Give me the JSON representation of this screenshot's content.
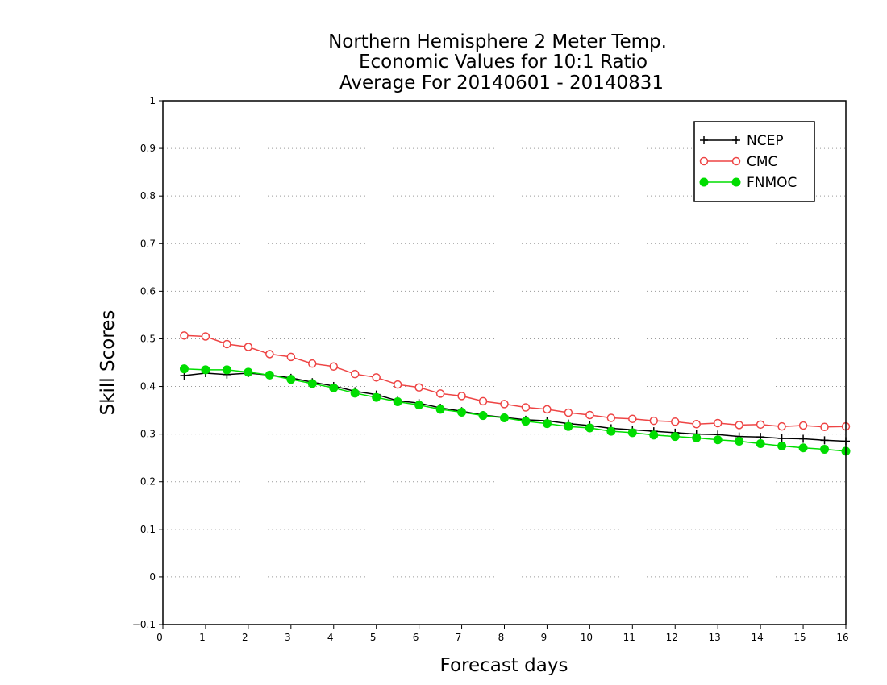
{
  "chart_data": {
    "type": "line",
    "title_lines": [
      "Northern Hemisphere 2 Meter Temp.",
      "Economic Values for 10:1 Ratio",
      "Average For 20140601 - 20140831"
    ],
    "xlabel": "Forecast days",
    "ylabel": "Skill Scores",
    "xlim": [
      0,
      16
    ],
    "ylim": [
      -0.1,
      1
    ],
    "x_ticks": [
      "0",
      "1",
      "2",
      "3",
      "4",
      "5",
      "6",
      "7",
      "8",
      "9",
      "10",
      "11",
      "12",
      "13",
      "14",
      "15",
      "16"
    ],
    "y_ticks": [
      "−0.1",
      "0",
      "0.1",
      "0.2",
      "0.3",
      "0.4",
      "0.5",
      "0.6",
      "0.7",
      "0.8",
      "0.9",
      "1"
    ],
    "grid": "horizontal dotted",
    "legend_position": "top-right",
    "x": [
      0.5,
      1,
      1.5,
      2,
      2.5,
      3,
      3.5,
      4,
      4.5,
      5,
      5.5,
      6,
      6.5,
      7,
      7.5,
      8,
      8.5,
      9,
      9.5,
      10,
      10.5,
      11,
      11.5,
      12,
      12.5,
      13,
      13.5,
      14,
      14.5,
      15,
      15.5,
      16
    ],
    "series": [
      {
        "name": "NCEP",
        "color": "#000000",
        "marker": "plus",
        "values": [
          0.423,
          0.428,
          0.425,
          0.428,
          0.424,
          0.418,
          0.409,
          0.401,
          0.39,
          0.383,
          0.37,
          0.365,
          0.355,
          0.348,
          0.34,
          0.335,
          0.33,
          0.328,
          0.322,
          0.318,
          0.312,
          0.309,
          0.306,
          0.303,
          0.3,
          0.299,
          0.295,
          0.294,
          0.291,
          0.29,
          0.287,
          0.285
        ]
      },
      {
        "name": "CMC",
        "color": "#ee4444",
        "marker": "open-circle",
        "values": [
          0.507,
          0.505,
          0.489,
          0.483,
          0.468,
          0.462,
          0.448,
          0.442,
          0.426,
          0.419,
          0.404,
          0.398,
          0.385,
          0.38,
          0.369,
          0.363,
          0.356,
          0.352,
          0.345,
          0.34,
          0.334,
          0.332,
          0.328,
          0.326,
          0.321,
          0.323,
          0.319,
          0.32,
          0.316,
          0.318,
          0.315,
          0.316
        ]
      },
      {
        "name": "FNMOC",
        "color": "#00dd00",
        "marker": "filled-circle",
        "values": [
          0.437,
          0.435,
          0.435,
          0.43,
          0.424,
          0.415,
          0.406,
          0.397,
          0.386,
          0.377,
          0.368,
          0.361,
          0.352,
          0.346,
          0.339,
          0.334,
          0.327,
          0.322,
          0.316,
          0.313,
          0.306,
          0.303,
          0.298,
          0.295,
          0.292,
          0.288,
          0.285,
          0.28,
          0.275,
          0.271,
          0.268,
          0.264
        ]
      }
    ]
  }
}
